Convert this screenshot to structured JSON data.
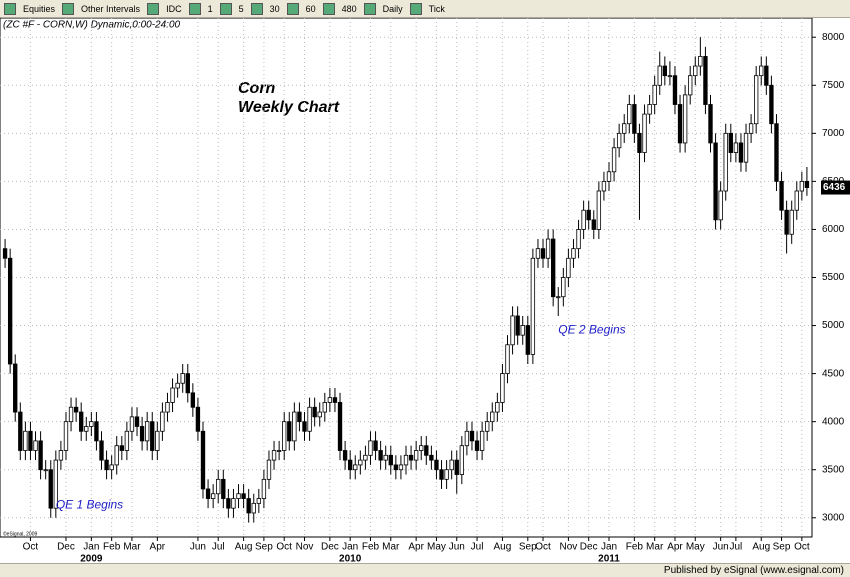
{
  "toolbar": {
    "items": [
      "Equities",
      "Other Intervals",
      "IDC",
      "1",
      "5",
      "30",
      "60",
      "480",
      "Daily",
      "Tick"
    ]
  },
  "footer": "Published by eSignal (www.esignal.com)",
  "chart_data": {
    "type": "candlestick",
    "header": "(ZC #F - CORN,W) Dynamic,0:00-24:00",
    "title": "Corn",
    "subtitle": "Weekly Chart",
    "copyright": "©eSignal, 2009",
    "annotations": [
      {
        "text": "QE 1 Begins",
        "x": 10,
        "value": 3130
      },
      {
        "text": "QE 2 Begins",
        "x": 109,
        "value": 4950
      }
    ],
    "up_color": "#ffffff",
    "down_color": "#000000",
    "grid": true,
    "last_price": 6436,
    "xlim": [
      -1,
      159
    ],
    "ylim": [
      2800,
      8200
    ],
    "yticks": [
      3000,
      3500,
      4000,
      4500,
      5000,
      5500,
      6000,
      6500,
      7000,
      7500,
      8000
    ],
    "xticks": [
      {
        "value": 5,
        "label": "Oct"
      },
      {
        "value": 12,
        "label": "Dec"
      },
      {
        "value": 17,
        "label": "Jan"
      },
      {
        "value": 21,
        "label": "Feb"
      },
      {
        "value": 25,
        "label": "Mar"
      },
      {
        "value": 30,
        "label": "Apr"
      },
      {
        "value": 38,
        "label": "Jun"
      },
      {
        "value": 42,
        "label": "Jul"
      },
      {
        "value": 47,
        "label": "Aug"
      },
      {
        "value": 51,
        "label": "Sep"
      },
      {
        "value": 55,
        "label": "Oct"
      },
      {
        "value": 59,
        "label": "Nov"
      },
      {
        "value": 64,
        "label": "Dec"
      },
      {
        "value": 68,
        "label": "Jan"
      },
      {
        "value": 72,
        "label": "Feb"
      },
      {
        "value": 76,
        "label": "Mar"
      },
      {
        "value": 81,
        "label": "Apr"
      },
      {
        "value": 85,
        "label": "May"
      },
      {
        "value": 89,
        "label": "Jun"
      },
      {
        "value": 93,
        "label": "Jul"
      },
      {
        "value": 98,
        "label": "Aug"
      },
      {
        "value": 103,
        "label": "Sep"
      },
      {
        "value": 106,
        "label": "Oct"
      },
      {
        "value": 111,
        "label": "Nov"
      },
      {
        "value": 115,
        "label": "Dec"
      },
      {
        "value": 119,
        "label": "Jan"
      },
      {
        "value": 124,
        "label": "Feb"
      },
      {
        "value": 128,
        "label": "Mar"
      },
      {
        "value": 132,
        "label": "Apr"
      },
      {
        "value": 136,
        "label": "May"
      },
      {
        "value": 141,
        "label": "Jun"
      },
      {
        "value": 144,
        "label": "Jul"
      },
      {
        "value": 149,
        "label": "Aug"
      },
      {
        "value": 153,
        "label": "Sep"
      },
      {
        "value": 157,
        "label": "Oct"
      }
    ],
    "year_labels": [
      {
        "value": 17,
        "label": "2009"
      },
      {
        "value": 68,
        "label": "2010"
      },
      {
        "value": 119,
        "label": "2011"
      }
    ],
    "candles": [
      [
        5800,
        5900,
        5600,
        5700
      ],
      [
        5700,
        5800,
        4500,
        4600
      ],
      [
        4600,
        4700,
        4000,
        4100
      ],
      [
        4100,
        4200,
        3600,
        3700
      ],
      [
        3700,
        4000,
        3600,
        3900
      ],
      [
        3900,
        4000,
        3600,
        3700
      ],
      [
        3700,
        3900,
        3600,
        3800
      ],
      [
        3800,
        3900,
        3400,
        3500
      ],
      [
        3500,
        3600,
        3400,
        3500
      ],
      [
        3500,
        3600,
        3000,
        3100
      ],
      [
        3100,
        3700,
        3000,
        3600
      ],
      [
        3600,
        3800,
        3500,
        3700
      ],
      [
        3700,
        4100,
        3600,
        4000
      ],
      [
        4000,
        4250,
        3900,
        4150
      ],
      [
        4150,
        4250,
        4000,
        4100
      ],
      [
        4100,
        4200,
        3800,
        3900
      ],
      [
        3900,
        4050,
        3800,
        3950
      ],
      [
        3950,
        4100,
        3850,
        4000
      ],
      [
        4000,
        4100,
        3700,
        3800
      ],
      [
        3800,
        3900,
        3500,
        3600
      ],
      [
        3600,
        3700,
        3400,
        3500
      ],
      [
        3500,
        3650,
        3400,
        3550
      ],
      [
        3550,
        3850,
        3450,
        3750
      ],
      [
        3750,
        3850,
        3600,
        3700
      ],
      [
        3700,
        4000,
        3600,
        3900
      ],
      [
        3900,
        4150,
        3800,
        4050
      ],
      [
        4050,
        4150,
        3850,
        3950
      ],
      [
        3950,
        4050,
        3700,
        3800
      ],
      [
        3800,
        4100,
        3700,
        4000
      ],
      [
        4000,
        4100,
        3600,
        3700
      ],
      [
        3700,
        4000,
        3600,
        3900
      ],
      [
        3900,
        4200,
        3800,
        4100
      ],
      [
        4100,
        4300,
        4000,
        4200
      ],
      [
        4200,
        4450,
        4100,
        4350
      ],
      [
        4350,
        4500,
        4250,
        4400
      ],
      [
        4400,
        4600,
        4300,
        4500
      ],
      [
        4500,
        4600,
        4200,
        4300
      ],
      [
        4300,
        4400,
        4050,
        4150
      ],
      [
        4150,
        4250,
        3800,
        3900
      ],
      [
        3900,
        4000,
        3200,
        3300
      ],
      [
        3300,
        3400,
        3100,
        3200
      ],
      [
        3200,
        3350,
        3100,
        3250
      ],
      [
        3250,
        3500,
        3150,
        3400
      ],
      [
        3400,
        3500,
        3100,
        3200
      ],
      [
        3200,
        3300,
        3000,
        3100
      ],
      [
        3100,
        3300,
        3000,
        3200
      ],
      [
        3200,
        3350,
        3100,
        3250
      ],
      [
        3250,
        3350,
        3100,
        3200
      ],
      [
        3200,
        3300,
        2950,
        3050
      ],
      [
        3050,
        3250,
        2950,
        3150
      ],
      [
        3150,
        3300,
        3050,
        3200
      ],
      [
        3200,
        3500,
        3100,
        3400
      ],
      [
        3400,
        3700,
        3300,
        3600
      ],
      [
        3600,
        3800,
        3500,
        3700
      ],
      [
        3700,
        3800,
        3600,
        3700
      ],
      [
        3700,
        4100,
        3600,
        4000
      ],
      [
        4000,
        4100,
        3700,
        3800
      ],
      [
        3800,
        4200,
        3700,
        4100
      ],
      [
        4100,
        4200,
        3900,
        4000
      ],
      [
        4000,
        4100,
        3800,
        3900
      ],
      [
        3900,
        4250,
        3800,
        4150
      ],
      [
        4150,
        4250,
        3950,
        4050
      ],
      [
        4050,
        4200,
        3950,
        4100
      ],
      [
        4100,
        4300,
        4000,
        4200
      ],
      [
        4200,
        4350,
        4100,
        4250
      ],
      [
        4250,
        4350,
        4100,
        4200
      ],
      [
        4200,
        4300,
        3600,
        3700
      ],
      [
        3700,
        3800,
        3500,
        3600
      ],
      [
        3600,
        3700,
        3400,
        3500
      ],
      [
        3500,
        3650,
        3400,
        3550
      ],
      [
        3550,
        3700,
        3450,
        3600
      ],
      [
        3600,
        3750,
        3500,
        3650
      ],
      [
        3650,
        3900,
        3550,
        3800
      ],
      [
        3800,
        3900,
        3600,
        3700
      ],
      [
        3700,
        3800,
        3500,
        3600
      ],
      [
        3600,
        3750,
        3500,
        3650
      ],
      [
        3650,
        3750,
        3450,
        3550
      ],
      [
        3550,
        3650,
        3400,
        3500
      ],
      [
        3500,
        3650,
        3400,
        3550
      ],
      [
        3550,
        3750,
        3450,
        3650
      ],
      [
        3650,
        3750,
        3500,
        3600
      ],
      [
        3600,
        3800,
        3500,
        3700
      ],
      [
        3700,
        3850,
        3600,
        3750
      ],
      [
        3750,
        3850,
        3550,
        3650
      ],
      [
        3650,
        3750,
        3500,
        3600
      ],
      [
        3600,
        3700,
        3400,
        3500
      ],
      [
        3500,
        3600,
        3300,
        3400
      ],
      [
        3400,
        3600,
        3300,
        3500
      ],
      [
        3500,
        3700,
        3400,
        3600
      ],
      [
        3600,
        3700,
        3250,
        3450
      ],
      [
        3450,
        3850,
        3350,
        3750
      ],
      [
        3750,
        4000,
        3650,
        3900
      ],
      [
        3900,
        4000,
        3700,
        3800
      ],
      [
        3800,
        3900,
        3600,
        3700
      ],
      [
        3700,
        4000,
        3600,
        3900
      ],
      [
        3900,
        4100,
        3800,
        4000
      ],
      [
        4000,
        4200,
        3900,
        4100
      ],
      [
        4100,
        4300,
        4000,
        4200
      ],
      [
        4200,
        4600,
        4100,
        4500
      ],
      [
        4500,
        4900,
        4400,
        4800
      ],
      [
        4800,
        5200,
        4700,
        5100
      ],
      [
        5100,
        5200,
        4800,
        4900
      ],
      [
        4900,
        5100,
        4800,
        5000
      ],
      [
        5000,
        5100,
        4600,
        4700
      ],
      [
        4700,
        5800,
        4600,
        5700
      ],
      [
        5700,
        5900,
        5600,
        5800
      ],
      [
        5800,
        5900,
        5600,
        5700
      ],
      [
        5700,
        6000,
        5600,
        5900
      ],
      [
        5900,
        6000,
        5200,
        5300
      ],
      [
        5300,
        5400,
        5100,
        5300
      ],
      [
        5300,
        5600,
        5200,
        5500
      ],
      [
        5500,
        5800,
        5400,
        5700
      ],
      [
        5700,
        5900,
        5600,
        5800
      ],
      [
        5800,
        6100,
        5700,
        6000
      ],
      [
        6000,
        6300,
        5900,
        6200
      ],
      [
        6200,
        6300,
        6000,
        6100
      ],
      [
        6100,
        6200,
        5900,
        6000
      ],
      [
        6000,
        6500,
        5900,
        6400
      ],
      [
        6400,
        6600,
        6300,
        6500
      ],
      [
        6500,
        6700,
        6400,
        6600
      ],
      [
        6600,
        6950,
        6500,
        6850
      ],
      [
        6850,
        7100,
        6750,
        7000
      ],
      [
        7000,
        7200,
        6900,
        7100
      ],
      [
        7100,
        7400,
        7000,
        7300
      ],
      [
        7300,
        7400,
        6900,
        7000
      ],
      [
        7000,
        7100,
        6100,
        6800
      ],
      [
        6800,
        7300,
        6700,
        7200
      ],
      [
        7200,
        7400,
        7100,
        7300
      ],
      [
        7300,
        7600,
        7200,
        7500
      ],
      [
        7500,
        7850,
        7400,
        7700
      ],
      [
        7700,
        7800,
        7500,
        7600
      ],
      [
        7600,
        7750,
        7500,
        7600
      ],
      [
        7600,
        7700,
        7200,
        7300
      ],
      [
        7300,
        7400,
        6800,
        6900
      ],
      [
        6900,
        7500,
        6800,
        7400
      ],
      [
        7400,
        7700,
        7300,
        7600
      ],
      [
        7600,
        7800,
        7500,
        7700
      ],
      [
        7700,
        8000,
        7600,
        7800
      ],
      [
        7800,
        7900,
        7200,
        7300
      ],
      [
        7300,
        7400,
        6800,
        6900
      ],
      [
        6900,
        7000,
        6000,
        6100
      ],
      [
        6100,
        6500,
        6000,
        6400
      ],
      [
        6400,
        7100,
        6300,
        7000
      ],
      [
        7000,
        7100,
        6700,
        6800
      ],
      [
        6800,
        7000,
        6700,
        6900
      ],
      [
        6900,
        7000,
        6600,
        6700
      ],
      [
        6700,
        7100,
        6600,
        7000
      ],
      [
        7000,
        7200,
        6900,
        7100
      ],
      [
        7100,
        7700,
        7000,
        7600
      ],
      [
        7600,
        7800,
        7500,
        7700
      ],
      [
        7700,
        7800,
        7400,
        7500
      ],
      [
        7500,
        7600,
        7000,
        7100
      ],
      [
        7100,
        7200,
        6400,
        6500
      ],
      [
        6500,
        6600,
        6100,
        6200
      ],
      [
        6200,
        6300,
        5750,
        5950
      ],
      [
        5950,
        6300,
        5850,
        6200
      ],
      [
        6200,
        6500,
        6100,
        6400
      ],
      [
        6400,
        6600,
        6300,
        6500
      ],
      [
        6500,
        6650,
        6350,
        6436
      ]
    ]
  }
}
